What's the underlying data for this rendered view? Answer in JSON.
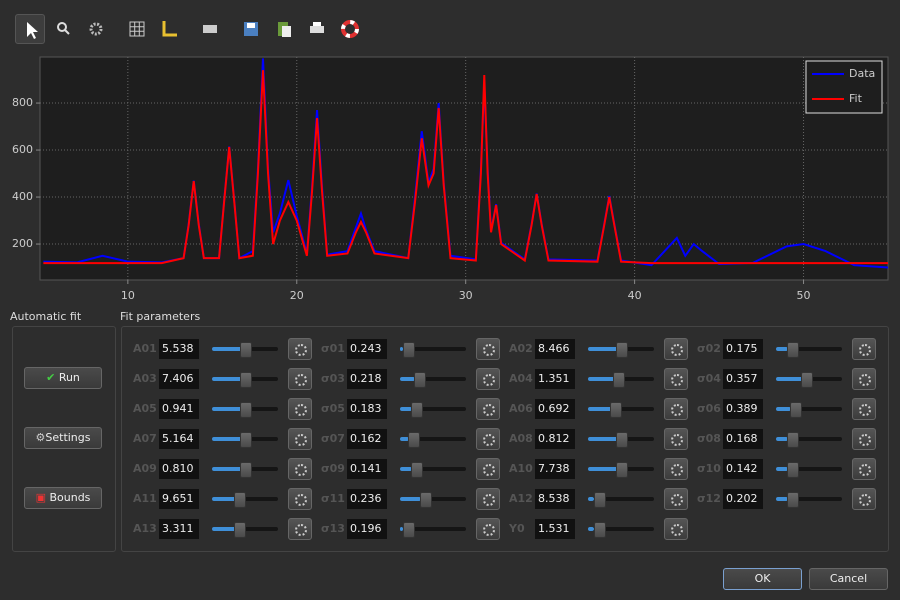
{
  "chart_data": {
    "type": "line",
    "x": [
      5,
      7,
      8.5,
      10,
      12,
      13.3,
      13.6,
      13.9,
      14.2,
      14.5,
      15.4,
      15.7,
      16.0,
      16.3,
      16.6,
      17.4,
      17.7,
      18.0,
      18.3,
      18.6,
      19.0,
      19.5,
      20.0,
      20.6,
      20.9,
      21.2,
      21.5,
      21.8,
      23.0,
      23.5,
      23.8,
      24.1,
      24.6,
      26.6,
      27.0,
      27.4,
      27.8,
      28.1,
      28.4,
      28.7,
      29.1,
      30.6,
      30.9,
      31.1,
      31.3,
      31.5,
      31.8,
      32.1,
      33.5,
      33.9,
      34.2,
      34.5,
      34.9,
      37.8,
      38.2,
      38.5,
      38.8,
      39.2,
      41,
      42.5,
      43,
      43.5,
      44,
      45,
      47,
      49,
      50,
      51.3,
      53,
      55
    ],
    "series": [
      {
        "name": "Data",
        "color": "#0000ff",
        "values": [
          125,
          122,
          150,
          125,
          122,
          140,
          285,
          470,
          285,
          140,
          140,
          385,
          615,
          385,
          140,
          170,
          520,
          990,
          520,
          250,
          330,
          472,
          320,
          160,
          440,
          770,
          440,
          155,
          170,
          270,
          330,
          260,
          170,
          140,
          400,
          680,
          460,
          520,
          800,
          460,
          150,
          135,
          520,
          880,
          520,
          255,
          370,
          205,
          135,
          285,
          415,
          285,
          135,
          130,
          285,
          405,
          285,
          130,
          110,
          226,
          150,
          200,
          170,
          115,
          120,
          190,
          200,
          170,
          110,
          100
        ]
      },
      {
        "name": "Fit",
        "color": "#ff0000",
        "values": [
          119,
          119,
          119,
          119,
          119,
          140,
          280,
          468,
          280,
          140,
          140,
          380,
          613,
          380,
          140,
          150,
          500,
          940,
          500,
          200,
          300,
          379,
          300,
          150,
          420,
          736,
          420,
          150,
          160,
          250,
          294,
          250,
          160,
          140,
          380,
          650,
          450,
          500,
          779,
          450,
          140,
          130,
          500,
          919,
          500,
          250,
          366,
          200,
          130,
          280,
          413,
          280,
          130,
          125,
          280,
          400,
          280,
          125,
          119,
          119,
          119,
          119,
          119,
          119,
          119,
          119,
          119,
          119,
          119,
          119
        ]
      }
    ],
    "xlim": [
      4.8,
      55
    ],
    "ylim": [
      47,
      996
    ],
    "xticks": [
      10,
      20,
      30,
      40,
      50
    ],
    "yticks": [
      200,
      400,
      600,
      800
    ],
    "grid": true,
    "legend": "upper right"
  },
  "panels": {
    "automatic_fit": {
      "title": "Automatic fit",
      "buttons": [
        "Run",
        "Settings",
        "Bounds"
      ]
    },
    "fit_parameters": {
      "title": "Fit parameters",
      "params": [
        {
          "name": "A01",
          "value": "5.538"
        },
        {
          "name": "σ01",
          "value": "0.243"
        },
        {
          "name": "A02",
          "value": "8.466"
        },
        {
          "name": "σ02",
          "value": "0.175"
        },
        {
          "name": "A03",
          "value": "7.406"
        },
        {
          "name": "σ03",
          "value": "0.218"
        },
        {
          "name": "A04",
          "value": "1.351"
        },
        {
          "name": "σ04",
          "value": "0.357"
        },
        {
          "name": "A05",
          "value": "0.941"
        },
        {
          "name": "σ05",
          "value": "0.183"
        },
        {
          "name": "A06",
          "value": "0.692"
        },
        {
          "name": "σ06",
          "value": "0.389"
        },
        {
          "name": "A07",
          "value": "5.164"
        },
        {
          "name": "σ07",
          "value": "0.162"
        },
        {
          "name": "A08",
          "value": "0.812"
        },
        {
          "name": "σ08",
          "value": "0.168"
        },
        {
          "name": "A09",
          "value": "0.810"
        },
        {
          "name": "σ09",
          "value": "0.141"
        },
        {
          "name": "A10",
          "value": "7.738"
        },
        {
          "name": "σ10",
          "value": "0.142"
        },
        {
          "name": "A11",
          "value": "9.651"
        },
        {
          "name": "σ11",
          "value": "0.236"
        },
        {
          "name": "A12",
          "value": "8.538"
        },
        {
          "name": "σ12",
          "value": "0.202"
        },
        {
          "name": "A13",
          "value": "3.311"
        },
        {
          "name": "σ13",
          "value": "0.196"
        },
        {
          "name": "Y0",
          "value": "1.531"
        }
      ]
    }
  },
  "footer": {
    "ok": "OK",
    "cancel": "Cancel"
  }
}
